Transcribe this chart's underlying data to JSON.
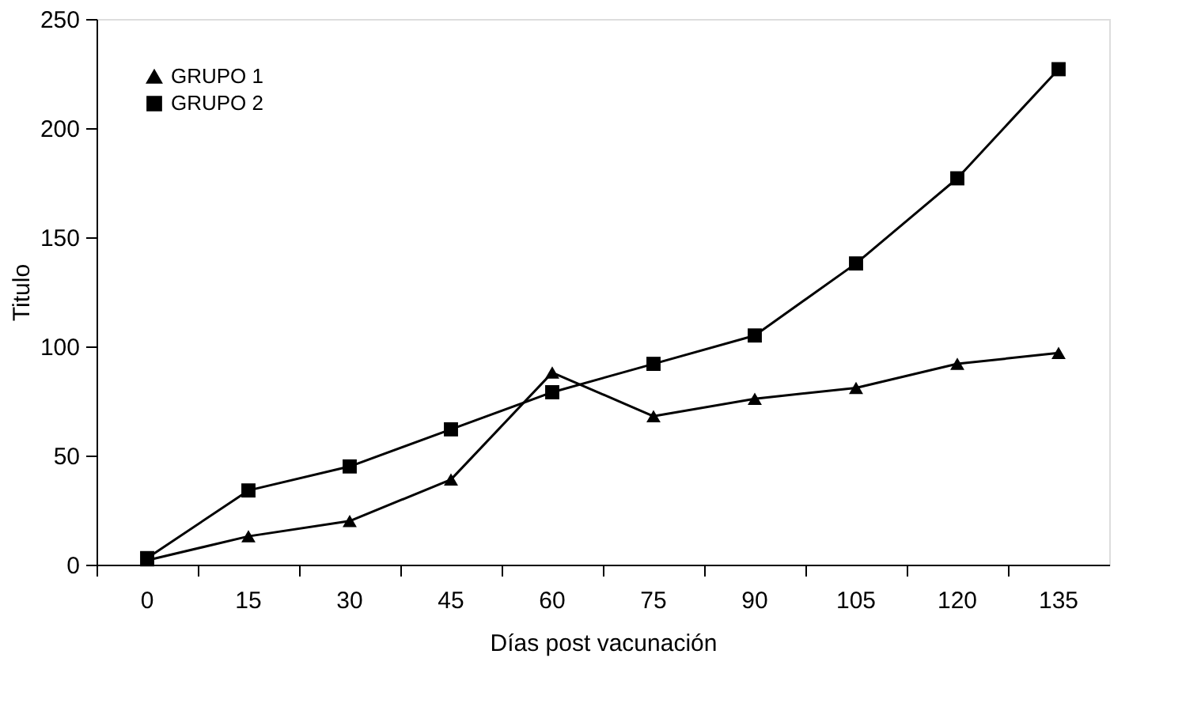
{
  "chart_data": {
    "type": "line",
    "xlabel": "Días post vacunación",
    "ylabel": "Titulo",
    "categories": [
      "0",
      "15",
      "30",
      "45",
      "60",
      "75",
      "90",
      "105",
      "120",
      "135"
    ],
    "series": [
      {
        "name": "GRUPO 1",
        "color": "#000000",
        "marker": "triangle",
        "values": [
          2,
          13,
          20,
          39,
          88,
          68,
          76,
          81,
          92,
          97
        ]
      },
      {
        "name": "GRUPO 2",
        "color": "#000000",
        "marker": "square",
        "values": [
          3,
          34,
          45,
          62,
          79,
          92,
          105,
          138,
          177,
          227
        ]
      }
    ],
    "ylim": [
      0,
      250
    ],
    "yticks": [
      0,
      50,
      100,
      150,
      200,
      250
    ],
    "grid": false,
    "legend": "top left",
    "line_style": "solid"
  }
}
